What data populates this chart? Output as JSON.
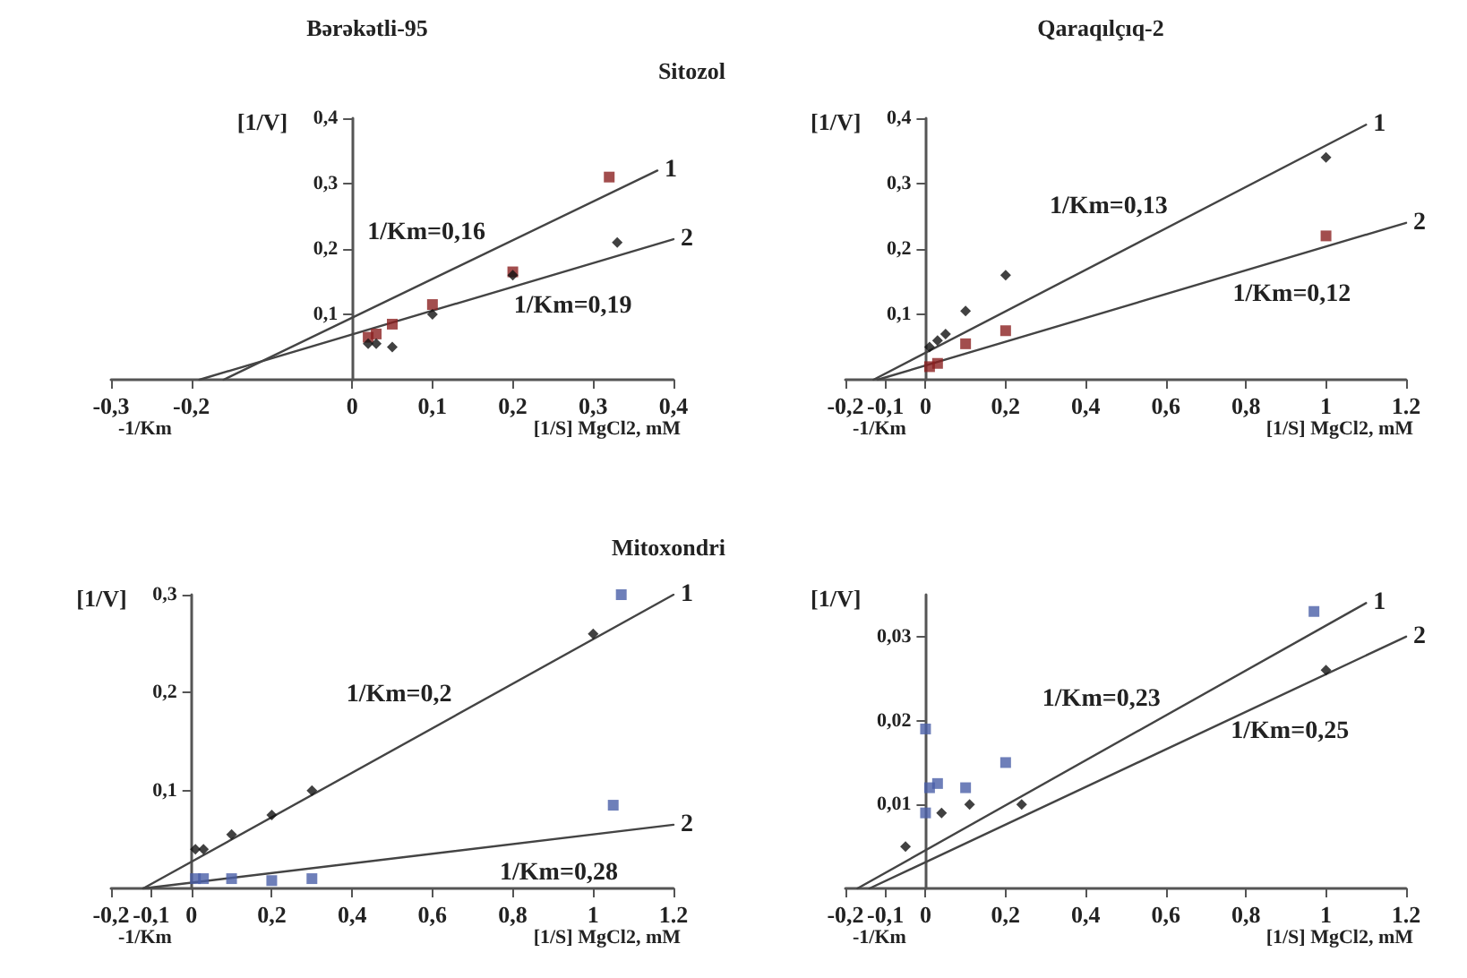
{
  "chart_data": [
    {
      "type": "scatter",
      "title": "Bərəkətli-95",
      "subtitle": "Sitozol",
      "xlabel": "[1/S] MgCl2, mM",
      "ylabel": "[1/V]",
      "xlim": [
        -0.3,
        0.4
      ],
      "ylim": [
        0,
        0.4
      ],
      "xticks": [
        {
          "value": -0.3,
          "label": "-0,3"
        },
        {
          "value": -0.2,
          "label": "-0,2"
        },
        0,
        {
          "value": 0.1,
          "label": "0,1"
        },
        {
          "value": 0.2,
          "label": "0,2"
        },
        {
          "value": 0.3,
          "label": "0,3"
        },
        {
          "value": 0.4,
          "label": "0,4"
        }
      ],
      "yticks": [
        {
          "value": 0.1,
          "label": "0,1"
        },
        {
          "value": 0.2,
          "label": "0,2"
        },
        {
          "value": 0.3,
          "label": "0,3"
        },
        {
          "value": 0.4,
          "label": "0,4"
        }
      ],
      "series": [
        {
          "type": "scatter",
          "marker": "square",
          "color": "#8b2020",
          "x": [
            0.02,
            0.03,
            0.05,
            0.1,
            0.2,
            0.32
          ],
          "values": [
            0.065,
            0.07,
            0.085,
            0.115,
            0.165,
            0.31
          ]
        },
        {
          "type": "scatter",
          "marker": "diamond",
          "color": "#111111",
          "x": [
            0.02,
            0.03,
            0.05,
            0.1,
            0.2,
            0.33
          ],
          "values": [
            0.055,
            0.055,
            0.05,
            0.1,
            0.16,
            0.21
          ]
        },
        {
          "type": "line",
          "name": "1",
          "marker": "none",
          "color": "#444444",
          "x": [
            -0.16,
            0.38
          ],
          "values": [
            0,
            0.32
          ]
        },
        {
          "type": "line",
          "name": "2",
          "marker": "none",
          "color": "#444444",
          "x": [
            -0.19,
            0.4
          ],
          "values": [
            0,
            0.215
          ]
        }
      ],
      "annotations": [
        "-1/Km",
        "1/Km=0,16",
        "1/Km=0,19"
      ]
    },
    {
      "type": "scatter",
      "title": "Qaraqılçıq-2",
      "xlabel": "[1/S] MgCl2, mM",
      "ylabel": "[1/V]",
      "xlim": [
        -0.2,
        1.2
      ],
      "ylim": [
        0,
        0.4
      ],
      "xticks": [
        {
          "value": -0.2,
          "label": "-0,2"
        },
        {
          "value": -0.1,
          "label": "-0,1"
        },
        0,
        {
          "value": 0.2,
          "label": "0,2"
        },
        {
          "value": 0.4,
          "label": "0,4"
        },
        {
          "value": 0.6,
          "label": "0,6"
        },
        {
          "value": 0.8,
          "label": "0,8"
        },
        1,
        1.2
      ],
      "yticks": [
        {
          "value": 0.1,
          "label": "0,1"
        },
        {
          "value": 0.2,
          "label": "0,2"
        },
        {
          "value": 0.3,
          "label": "0,3"
        },
        {
          "value": 0.4,
          "label": "0,4"
        }
      ],
      "series": [
        {
          "type": "scatter",
          "marker": "diamond",
          "color": "#111111",
          "x": [
            0.01,
            0.03,
            0.05,
            0.1,
            0.2,
            1
          ],
          "values": [
            0.05,
            0.06,
            0.07,
            0.105,
            0.16,
            0.34
          ]
        },
        {
          "type": "scatter",
          "marker": "square",
          "color": "#8b2020",
          "x": [
            0.01,
            0.03,
            0.1,
            0.2,
            1
          ],
          "values": [
            0.02,
            0.025,
            0.055,
            0.075,
            0.22
          ]
        },
        {
          "type": "line",
          "name": "1",
          "marker": "none",
          "color": "#444444",
          "x": [
            -0.13,
            1.1
          ],
          "values": [
            0,
            0.39
          ]
        },
        {
          "type": "line",
          "name": "2",
          "marker": "none",
          "color": "#444444",
          "x": [
            -0.12,
            1.2
          ],
          "values": [
            0,
            0.24
          ]
        }
      ],
      "annotations": [
        "-1/Km",
        "1/Km=0,13",
        "1/Km=0,12"
      ]
    },
    {
      "type": "scatter",
      "subtitle": "Mitoxondri",
      "xlabel": "[1/S] MgCl2, mM",
      "ylabel": "[1/V]",
      "xlim": [
        -0.2,
        1.2
      ],
      "ylim": [
        0,
        0.3
      ],
      "xticks": [
        {
          "value": -0.2,
          "label": "-0,2"
        },
        {
          "value": -0.1,
          "label": "-0,1"
        },
        0,
        {
          "value": 0.2,
          "label": "0,2"
        },
        {
          "value": 0.4,
          "label": "0,4"
        },
        {
          "value": 0.6,
          "label": "0,6"
        },
        {
          "value": 0.8,
          "label": "0,8"
        },
        1,
        1.2
      ],
      "yticks": [
        {
          "value": 0.1,
          "label": "0,1"
        },
        {
          "value": 0.2,
          "label": "0,2"
        },
        {
          "value": 0.3,
          "label": "0,3"
        }
      ],
      "series": [
        {
          "type": "scatter",
          "marker": "diamond",
          "color": "#111111",
          "x": [
            0.01,
            0.03,
            0.1,
            0.2,
            0.3,
            1
          ],
          "values": [
            0.04,
            0.04,
            0.055,
            0.075,
            0.1,
            0.26
          ]
        },
        {
          "type": "scatter",
          "marker": "square",
          "color": "#4a5fa8",
          "x": [
            0.01,
            0.03,
            0.1,
            0.2,
            0.3,
            1.05,
            1.07
          ],
          "values": [
            0.01,
            0.01,
            0.01,
            0.008,
            0.01,
            0.085,
            0.3
          ]
        },
        {
          "type": "line",
          "name": "1",
          "marker": "none",
          "color": "#444444",
          "x": [
            -0.12,
            1.2
          ],
          "values": [
            0,
            0.3
          ]
        },
        {
          "type": "line",
          "name": "2",
          "marker": "none",
          "color": "#444444",
          "x": [
            -0.12,
            1.2
          ],
          "values": [
            0,
            0.065
          ]
        }
      ],
      "annotations": [
        "-1/Km",
        "1/Km=0,2",
        "1/Km=0,28"
      ]
    },
    {
      "type": "scatter",
      "xlabel": "[1/S] MgCl2, mM",
      "ylabel": "[1/V]",
      "xlim": [
        -0.2,
        1.2
      ],
      "ylim": [
        0,
        0.035
      ],
      "xticks": [
        {
          "value": -0.2,
          "label": "-0,2"
        },
        {
          "value": -0.1,
          "label": "-0,1"
        },
        0,
        {
          "value": 0.2,
          "label": "0,2"
        },
        {
          "value": 0.4,
          "label": "0,4"
        },
        {
          "value": 0.6,
          "label": "0,6"
        },
        {
          "value": 0.8,
          "label": "0,8"
        },
        1,
        1.2
      ],
      "yticks": [
        {
          "value": 0.01,
          "label": "0,01"
        },
        {
          "value": 0.02,
          "label": "0,02"
        },
        {
          "value": 0.03,
          "label": "0,03"
        }
      ],
      "series": [
        {
          "type": "scatter",
          "marker": "square",
          "color": "#4a5fa8",
          "x": [
            0,
            0,
            0.01,
            0.03,
            0.1,
            0.2,
            0.97
          ],
          "values": [
            0.019,
            0.009,
            0.012,
            0.0125,
            0.012,
            0.015,
            0.033
          ]
        },
        {
          "type": "scatter",
          "marker": "diamond",
          "color": "#111111",
          "x": [
            -0.05,
            0.04,
            0.11,
            0.24,
            1
          ],
          "values": [
            0.005,
            0.009,
            0.01,
            0.01,
            0.026
          ]
        },
        {
          "type": "line",
          "name": "1",
          "marker": "none",
          "color": "#444444",
          "x": [
            -0.17,
            1.1
          ],
          "values": [
            0,
            0.034
          ]
        },
        {
          "type": "line",
          "name": "2",
          "marker": "none",
          "color": "#444444",
          "x": [
            -0.14,
            1.2
          ],
          "values": [
            0,
            0.03
          ]
        }
      ],
      "annotations": [
        "-1/Km",
        "1/Km=0,23",
        "1/Km=0,25"
      ]
    }
  ]
}
